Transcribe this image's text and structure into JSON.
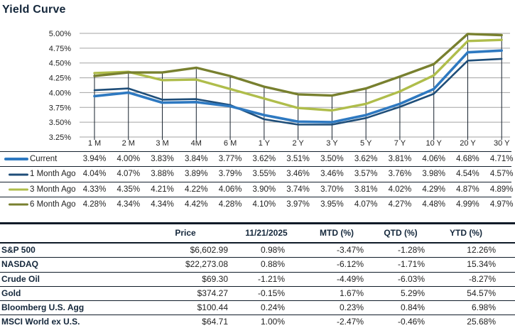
{
  "title": "Yield Curve",
  "chart_data": {
    "type": "line",
    "categories": [
      "1 M",
      "2 M",
      "3 M",
      "4M",
      "6 M",
      "1 Y",
      "2 Y",
      "3 Y",
      "5 Y",
      "7 Y",
      "10 Y",
      "20 Y",
      "30 Y"
    ],
    "series": [
      {
        "name": "Current",
        "color": "#2E79C1",
        "values": [
          3.94,
          4.0,
          3.83,
          3.84,
          3.77,
          3.62,
          3.51,
          3.5,
          3.62,
          3.81,
          4.06,
          4.68,
          4.71
        ]
      },
      {
        "name": "1 Month Ago",
        "color": "#1F4E79",
        "values": [
          4.04,
          4.07,
          3.88,
          3.89,
          3.79,
          3.55,
          3.46,
          3.46,
          3.57,
          3.76,
          3.98,
          4.54,
          4.57
        ]
      },
      {
        "name": "3 Month Ago",
        "color": "#AFBD4B",
        "values": [
          4.33,
          4.35,
          4.21,
          4.22,
          4.06,
          3.9,
          3.74,
          3.7,
          3.81,
          4.02,
          4.29,
          4.87,
          4.89
        ]
      },
      {
        "name": "6 Month Ago",
        "color": "#78802F",
        "values": [
          4.28,
          4.34,
          4.34,
          4.42,
          4.28,
          4.1,
          3.97,
          3.95,
          4.07,
          4.27,
          4.48,
          4.99,
          4.97
        ]
      }
    ],
    "title": "Yield Curve",
    "xlabel": "",
    "ylabel": "",
    "ylim": [
      3.25,
      5.0
    ],
    "y_ticks": [
      "5.00%",
      "4.75%",
      "4.50%",
      "4.25%",
      "4.00%",
      "3.75%",
      "3.50%",
      "3.25%"
    ],
    "grid": "horizontal",
    "drop_lines": true,
    "legend_position": "table-below-left"
  },
  "market_table": {
    "headers": [
      "Price",
      "11/21/2025",
      "MTD (%)",
      "QTD (%)",
      "YTD (%)"
    ],
    "rows": [
      {
        "label": "S&P 500",
        "values": [
          "$6,602.99",
          "0.98%",
          "-3.47%",
          "-1.28%",
          "12.26%"
        ]
      },
      {
        "label": "NASDAQ",
        "values": [
          "$22,273.08",
          "0.88%",
          "-6.12%",
          "-1.71%",
          "15.34%"
        ]
      },
      {
        "label": "Crude Oil",
        "values": [
          "$69.30",
          "-1.21%",
          "-4.49%",
          "-6.03%",
          "-8.27%"
        ]
      },
      {
        "label": "Gold",
        "values": [
          "$374.27",
          "-0.15%",
          "1.67%",
          "5.29%",
          "54.57%"
        ]
      },
      {
        "label": "Bloomberg U.S. Agg",
        "values": [
          "$100.44",
          "0.24%",
          "0.23%",
          "0.84%",
          "6.98%"
        ]
      },
      {
        "label": "MSCI World ex U.S.",
        "values": [
          "$64.71",
          "1.00%",
          "-2.47%",
          "-0.46%",
          "25.68%"
        ]
      }
    ]
  },
  "colors": {
    "title_text": "#14273B",
    "body_text": "#1F1F1F",
    "gridline": "#A3A3A3",
    "drop_line": "#16212E",
    "table_border": "#0F1B28"
  }
}
